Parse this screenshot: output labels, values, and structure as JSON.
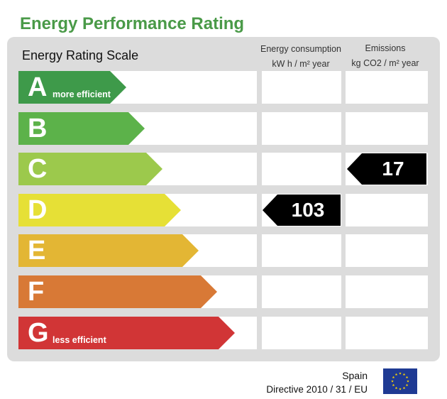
{
  "title": "Energy Performance Rating",
  "scale_label": "Energy Rating Scale",
  "headers": {
    "consumption_line1": "Energy consumption",
    "consumption_line2": "kW h / m² year",
    "emissions_line1": "Emissions",
    "emissions_line2": "kg CO2 / m² year"
  },
  "ratings": [
    {
      "letter": "A",
      "sub": "more efficient",
      "color": "#3e9a4a"
    },
    {
      "letter": "B",
      "sub": "",
      "color": "#5cb24a"
    },
    {
      "letter": "C",
      "sub": "",
      "color": "#9cc94c"
    },
    {
      "letter": "D",
      "sub": "",
      "color": "#e6e036"
    },
    {
      "letter": "E",
      "sub": "",
      "color": "#e3b634"
    },
    {
      "letter": "F",
      "sub": "",
      "color": "#d87936"
    },
    {
      "letter": "G",
      "sub": "less efficient",
      "color": "#d13536"
    }
  ],
  "consumption": {
    "value": "103",
    "rating": "D"
  },
  "emissions": {
    "value": "17",
    "rating": "C"
  },
  "footer": {
    "country": "Spain",
    "directive": "Directive 2010 / 31 / EU"
  },
  "colors": {
    "title": "#4a9a48",
    "panel": "#dcdcdc",
    "marker": "#000000",
    "eu_blue": "#1f3a93",
    "eu_star": "#ffd800"
  },
  "icons": {
    "eu_flag": "eu-flag-icon"
  }
}
